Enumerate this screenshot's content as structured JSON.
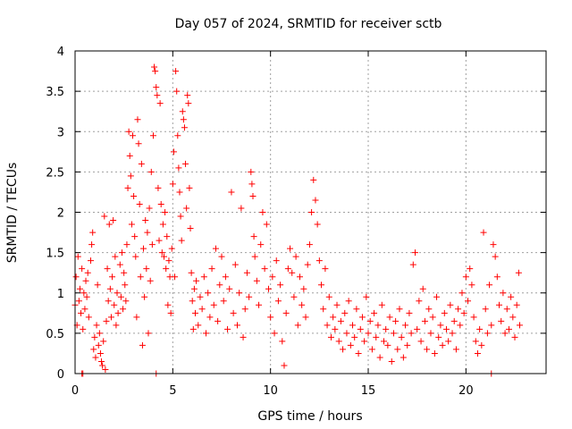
{
  "chart_data": {
    "type": "scatter",
    "title": "Day 057 of 2024, SRMTID for receiver sctb",
    "xlabel": "GPS time / hours",
    "ylabel": "SRMTID / TECUs",
    "xlim": [
      0,
      24.1
    ],
    "ylim": [
      0,
      4
    ],
    "grid": true,
    "marker": "plus",
    "color": "#ff0000",
    "xticks": [
      0,
      5,
      10,
      15,
      20
    ],
    "xtick_labels": [
      "0",
      "5",
      "10",
      "15",
      "20"
    ],
    "yticks": [
      0,
      0.5,
      1,
      1.5,
      2,
      2.5,
      3,
      3.5,
      4
    ],
    "ytick_labels": [
      "0",
      "0.5",
      "1",
      "1.5",
      "2",
      "2.5",
      "3",
      "3.5",
      "4"
    ],
    "series": [
      {
        "name": "SRMTID",
        "points": [
          [
            0.0,
            0.85
          ],
          [
            0.05,
            1.2
          ],
          [
            0.1,
            0.6
          ],
          [
            0.15,
            1.45
          ],
          [
            0.2,
            0.9
          ],
          [
            0.25,
            1.05
          ],
          [
            0.3,
            0.75
          ],
          [
            0.35,
            1.3
          ],
          [
            0.4,
            0.55
          ],
          [
            0.45,
            1.0
          ],
          [
            0.5,
            0.8
          ],
          [
            0.55,
            1.15
          ],
          [
            0.6,
            0.95
          ],
          [
            0.65,
            1.25
          ],
          [
            0.7,
            0.7
          ],
          [
            0.8,
            1.4
          ],
          [
            0.85,
            1.6
          ],
          [
            0.9,
            1.75
          ],
          [
            0.95,
            0.3
          ],
          [
            1.0,
            0.45
          ],
          [
            1.05,
            0.2
          ],
          [
            1.1,
            0.6
          ],
          [
            1.15,
            1.1
          ],
          [
            1.2,
            0.35
          ],
          [
            1.25,
            0.5
          ],
          [
            1.3,
            0.25
          ],
          [
            1.35,
            0.15
          ],
          [
            1.4,
            0.1
          ],
          [
            1.45,
            0.4
          ],
          [
            1.5,
            1.95
          ],
          [
            1.55,
            0.05
          ],
          [
            1.6,
            0.65
          ],
          [
            1.65,
            1.3
          ],
          [
            1.7,
            0.9
          ],
          [
            1.75,
            1.85
          ],
          [
            1.8,
            1.05
          ],
          [
            1.85,
            0.7
          ],
          [
            1.9,
            1.2
          ],
          [
            1.95,
            1.9
          ],
          [
            2.0,
            0.85
          ],
          [
            2.05,
            1.45
          ],
          [
            2.1,
            0.6
          ],
          [
            2.15,
            1.0
          ],
          [
            2.2,
            0.75
          ],
          [
            2.3,
            1.35
          ],
          [
            2.35,
            0.95
          ],
          [
            2.4,
            1.5
          ],
          [
            2.45,
            0.8
          ],
          [
            2.5,
            1.25
          ],
          [
            2.55,
            1.1
          ],
          [
            2.6,
            0.9
          ],
          [
            2.65,
            1.6
          ],
          [
            2.7,
            2.3
          ],
          [
            2.75,
            3.0
          ],
          [
            2.8,
            2.7
          ],
          [
            2.85,
            2.45
          ],
          [
            2.9,
            1.85
          ],
          [
            2.95,
            2.95
          ],
          [
            3.0,
            2.2
          ],
          [
            3.05,
            1.7
          ],
          [
            3.1,
            1.45
          ],
          [
            3.15,
            0.7
          ],
          [
            3.2,
            3.15
          ],
          [
            3.25,
            2.85
          ],
          [
            3.3,
            2.1
          ],
          [
            3.35,
            1.2
          ],
          [
            3.4,
            2.6
          ],
          [
            3.45,
            0.35
          ],
          [
            3.5,
            1.55
          ],
          [
            3.55,
            0.95
          ],
          [
            3.6,
            1.9
          ],
          [
            3.65,
            1.3
          ],
          [
            3.7,
            1.75
          ],
          [
            3.75,
            0.5
          ],
          [
            3.8,
            2.05
          ],
          [
            3.85,
            1.15
          ],
          [
            3.9,
            2.5
          ],
          [
            3.95,
            1.6
          ],
          [
            4.0,
            2.95
          ],
          [
            4.05,
            3.8
          ],
          [
            4.1,
            3.75
          ],
          [
            4.15,
            3.55
          ],
          [
            4.2,
            3.45
          ],
          [
            4.25,
            2.3
          ],
          [
            4.3,
            1.65
          ],
          [
            4.35,
            3.35
          ],
          [
            4.4,
            2.1
          ],
          [
            4.45,
            1.5
          ],
          [
            4.5,
            1.85
          ],
          [
            4.55,
            1.45
          ],
          [
            4.6,
            2.0
          ],
          [
            4.65,
            1.3
          ],
          [
            4.7,
            1.7
          ],
          [
            4.75,
            0.85
          ],
          [
            4.8,
            1.4
          ],
          [
            4.85,
            1.2
          ],
          [
            4.9,
            0.75
          ],
          [
            4.95,
            1.55
          ],
          [
            5.0,
            2.35
          ],
          [
            5.05,
            2.75
          ],
          [
            5.1,
            1.2
          ],
          [
            5.15,
            3.75
          ],
          [
            5.2,
            3.5
          ],
          [
            5.25,
            2.95
          ],
          [
            5.3,
            2.55
          ],
          [
            5.35,
            2.25
          ],
          [
            5.4,
            1.95
          ],
          [
            5.45,
            1.65
          ],
          [
            5.5,
            3.25
          ],
          [
            5.55,
            3.15
          ],
          [
            5.6,
            3.05
          ],
          [
            5.65,
            2.6
          ],
          [
            5.7,
            2.05
          ],
          [
            5.75,
            3.45
          ],
          [
            5.8,
            3.35
          ],
          [
            5.85,
            2.3
          ],
          [
            5.9,
            1.8
          ],
          [
            5.95,
            1.25
          ],
          [
            6.0,
            0.9
          ],
          [
            6.05,
            0.55
          ],
          [
            6.1,
            1.05
          ],
          [
            6.15,
            0.75
          ],
          [
            6.2,
            1.15
          ],
          [
            6.3,
            0.6
          ],
          [
            6.4,
            0.95
          ],
          [
            6.5,
            0.8
          ],
          [
            6.6,
            1.2
          ],
          [
            6.7,
            0.5
          ],
          [
            6.8,
            1.0
          ],
          [
            6.9,
            0.7
          ],
          [
            7.0,
            1.3
          ],
          [
            7.1,
            0.85
          ],
          [
            7.2,
            1.55
          ],
          [
            7.3,
            0.65
          ],
          [
            7.4,
            1.1
          ],
          [
            7.5,
            1.45
          ],
          [
            7.6,
            0.9
          ],
          [
            7.7,
            1.2
          ],
          [
            7.8,
            0.55
          ],
          [
            7.9,
            1.05
          ],
          [
            8.0,
            2.25
          ],
          [
            8.1,
            0.75
          ],
          [
            8.2,
            1.35
          ],
          [
            8.3,
            0.6
          ],
          [
            8.4,
            1.0
          ],
          [
            8.5,
            2.05
          ],
          [
            8.6,
            0.45
          ],
          [
            8.7,
            0.8
          ],
          [
            8.8,
            1.25
          ],
          [
            8.9,
            0.95
          ],
          [
            9.0,
            2.5
          ],
          [
            9.05,
            2.35
          ],
          [
            9.1,
            2.2
          ],
          [
            9.15,
            1.7
          ],
          [
            9.2,
            1.45
          ],
          [
            9.3,
            1.15
          ],
          [
            9.4,
            0.85
          ],
          [
            9.5,
            1.6
          ],
          [
            9.6,
            2.0
          ],
          [
            9.7,
            1.3
          ],
          [
            9.8,
            1.85
          ],
          [
            9.9,
            1.05
          ],
          [
            10.0,
            0.7
          ],
          [
            10.1,
            1.2
          ],
          [
            10.2,
            0.5
          ],
          [
            10.3,
            1.4
          ],
          [
            10.4,
            0.9
          ],
          [
            10.5,
            1.1
          ],
          [
            10.6,
            0.4
          ],
          [
            10.7,
            0.1
          ],
          [
            10.8,
            0.75
          ],
          [
            10.9,
            1.3
          ],
          [
            11.0,
            1.55
          ],
          [
            11.1,
            1.25
          ],
          [
            11.2,
            0.95
          ],
          [
            11.3,
            1.45
          ],
          [
            11.4,
            0.6
          ],
          [
            11.5,
            1.2
          ],
          [
            11.6,
            0.85
          ],
          [
            11.7,
            1.05
          ],
          [
            11.8,
            0.7
          ],
          [
            11.9,
            1.35
          ],
          [
            12.0,
            1.6
          ],
          [
            12.1,
            2.0
          ],
          [
            12.2,
            2.4
          ],
          [
            12.3,
            2.15
          ],
          [
            12.4,
            1.85
          ],
          [
            12.5,
            1.4
          ],
          [
            12.6,
            1.1
          ],
          [
            12.7,
            0.8
          ],
          [
            12.8,
            1.3
          ],
          [
            12.9,
            0.6
          ],
          [
            13.0,
            0.95
          ],
          [
            13.1,
            0.45
          ],
          [
            13.2,
            0.7
          ],
          [
            13.3,
            0.55
          ],
          [
            13.4,
            0.85
          ],
          [
            13.5,
            0.4
          ],
          [
            13.6,
            0.65
          ],
          [
            13.7,
            0.3
          ],
          [
            13.8,
            0.75
          ],
          [
            13.9,
            0.5
          ],
          [
            14.0,
            0.9
          ],
          [
            14.1,
            0.35
          ],
          [
            14.2,
            0.6
          ],
          [
            14.3,
            0.45
          ],
          [
            14.4,
            0.8
          ],
          [
            14.5,
            0.25
          ],
          [
            14.6,
            0.55
          ],
          [
            14.7,
            0.7
          ],
          [
            14.8,
            0.4
          ],
          [
            14.9,
            0.95
          ],
          [
            15.0,
            0.5
          ],
          [
            15.1,
            0.65
          ],
          [
            15.2,
            0.3
          ],
          [
            15.3,
            0.75
          ],
          [
            15.4,
            0.45
          ],
          [
            15.5,
            0.6
          ],
          [
            15.6,
            0.2
          ],
          [
            15.7,
            0.85
          ],
          [
            15.8,
            0.4
          ],
          [
            15.9,
            0.55
          ],
          [
            16.0,
            0.35
          ],
          [
            16.1,
            0.7
          ],
          [
            16.2,
            0.15
          ],
          [
            16.3,
            0.5
          ],
          [
            16.4,
            0.65
          ],
          [
            16.5,
            0.3
          ],
          [
            16.6,
            0.8
          ],
          [
            16.7,
            0.45
          ],
          [
            16.8,
            0.2
          ],
          [
            16.9,
            0.6
          ],
          [
            17.0,
            0.35
          ],
          [
            17.1,
            0.75
          ],
          [
            17.2,
            0.5
          ],
          [
            17.3,
            1.35
          ],
          [
            17.4,
            1.5
          ],
          [
            17.5,
            0.55
          ],
          [
            17.6,
            0.9
          ],
          [
            17.7,
            0.4
          ],
          [
            17.8,
            1.05
          ],
          [
            17.9,
            0.65
          ],
          [
            18.0,
            0.3
          ],
          [
            18.1,
            0.8
          ],
          [
            18.2,
            0.5
          ],
          [
            18.3,
            0.7
          ],
          [
            18.4,
            0.25
          ],
          [
            18.5,
            0.95
          ],
          [
            18.6,
            0.45
          ],
          [
            18.7,
            0.6
          ],
          [
            18.8,
            0.35
          ],
          [
            18.9,
            0.75
          ],
          [
            19.0,
            0.55
          ],
          [
            19.1,
            0.4
          ],
          [
            19.2,
            0.85
          ],
          [
            19.3,
            0.5
          ],
          [
            19.4,
            0.65
          ],
          [
            19.5,
            0.3
          ],
          [
            19.6,
            0.8
          ],
          [
            19.7,
            0.6
          ],
          [
            19.8,
            1.0
          ],
          [
            19.9,
            0.75
          ],
          [
            20.0,
            1.2
          ],
          [
            20.1,
            0.9
          ],
          [
            20.2,
            1.3
          ],
          [
            20.3,
            1.1
          ],
          [
            20.4,
            0.7
          ],
          [
            20.5,
            0.4
          ],
          [
            20.6,
            0.25
          ],
          [
            20.7,
            0.55
          ],
          [
            20.8,
            0.35
          ],
          [
            20.9,
            1.75
          ],
          [
            21.0,
            0.8
          ],
          [
            21.1,
            0.5
          ],
          [
            21.2,
            1.1
          ],
          [
            21.3,
            0.6
          ],
          [
            21.4,
            1.6
          ],
          [
            21.5,
            1.45
          ],
          [
            21.6,
            1.2
          ],
          [
            21.7,
            0.85
          ],
          [
            21.8,
            0.65
          ],
          [
            21.9,
            1.0
          ],
          [
            22.0,
            0.5
          ],
          [
            22.1,
            0.8
          ],
          [
            22.2,
            0.55
          ],
          [
            22.3,
            0.95
          ],
          [
            22.4,
            0.7
          ],
          [
            22.5,
            0.45
          ],
          [
            22.6,
            0.85
          ],
          [
            22.7,
            1.25
          ],
          [
            22.75,
            0.6
          ],
          [
            0.35,
            0.0
          ],
          [
            0.4,
            0.0
          ],
          [
            4.15,
            0.0
          ],
          [
            21.3,
            0.0
          ]
        ]
      }
    ]
  }
}
